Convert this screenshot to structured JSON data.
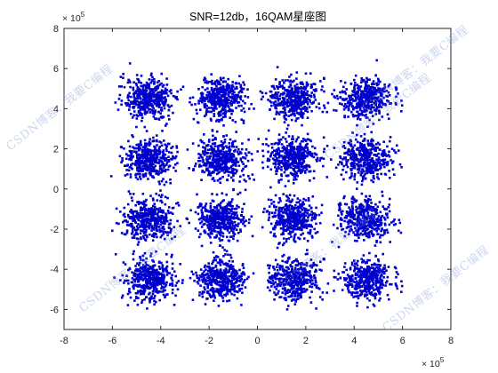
{
  "chart_data": {
    "type": "scatter",
    "title": "SNR=12db，16QAM星座图",
    "xlabel": "",
    "ylabel": "",
    "xlim": [
      -800000,
      800000
    ],
    "ylim": [
      -700000,
      800000
    ],
    "x_ticks": [
      "-8",
      "-6",
      "-4",
      "-2",
      "0",
      "2",
      "4",
      "6",
      "8"
    ],
    "y_ticks": [
      "-6",
      "-4",
      "-2",
      "0",
      "2",
      "4",
      "6",
      "8"
    ],
    "x_exponent": {
      "base": "× 10",
      "power": "5"
    },
    "y_exponent": {
      "base": "× 10",
      "power": "5"
    },
    "grid": false,
    "marker_color": "#0000cc",
    "constellation_levels": [
      -450000,
      -150000,
      150000,
      450000
    ],
    "series": [
      {
        "centers": [
          [
            -450000,
            450000
          ],
          [
            -150000,
            450000
          ],
          [
            150000,
            450000
          ],
          [
            450000,
            450000
          ],
          [
            -450000,
            150000
          ],
          [
            -150000,
            150000
          ],
          [
            150000,
            150000
          ],
          [
            450000,
            150000
          ],
          [
            -450000,
            -150000
          ],
          [
            -150000,
            -150000
          ],
          [
            150000,
            -150000
          ],
          [
            450000,
            -150000
          ],
          [
            -450000,
            -450000
          ],
          [
            -150000,
            -450000
          ],
          [
            150000,
            -450000
          ],
          [
            450000,
            -450000
          ]
        ],
        "points_per_center": 420,
        "noise_std": 50000
      }
    ]
  },
  "watermarks": [
    "CSDN博客：我要C编程",
    "CSDN博客：我要C编程",
    "CSDN博客：我要C编程",
    "CSDN博客：我要C编程",
    "CSDN博客：我要C编程",
    "CSDN博客：我要C编程"
  ]
}
